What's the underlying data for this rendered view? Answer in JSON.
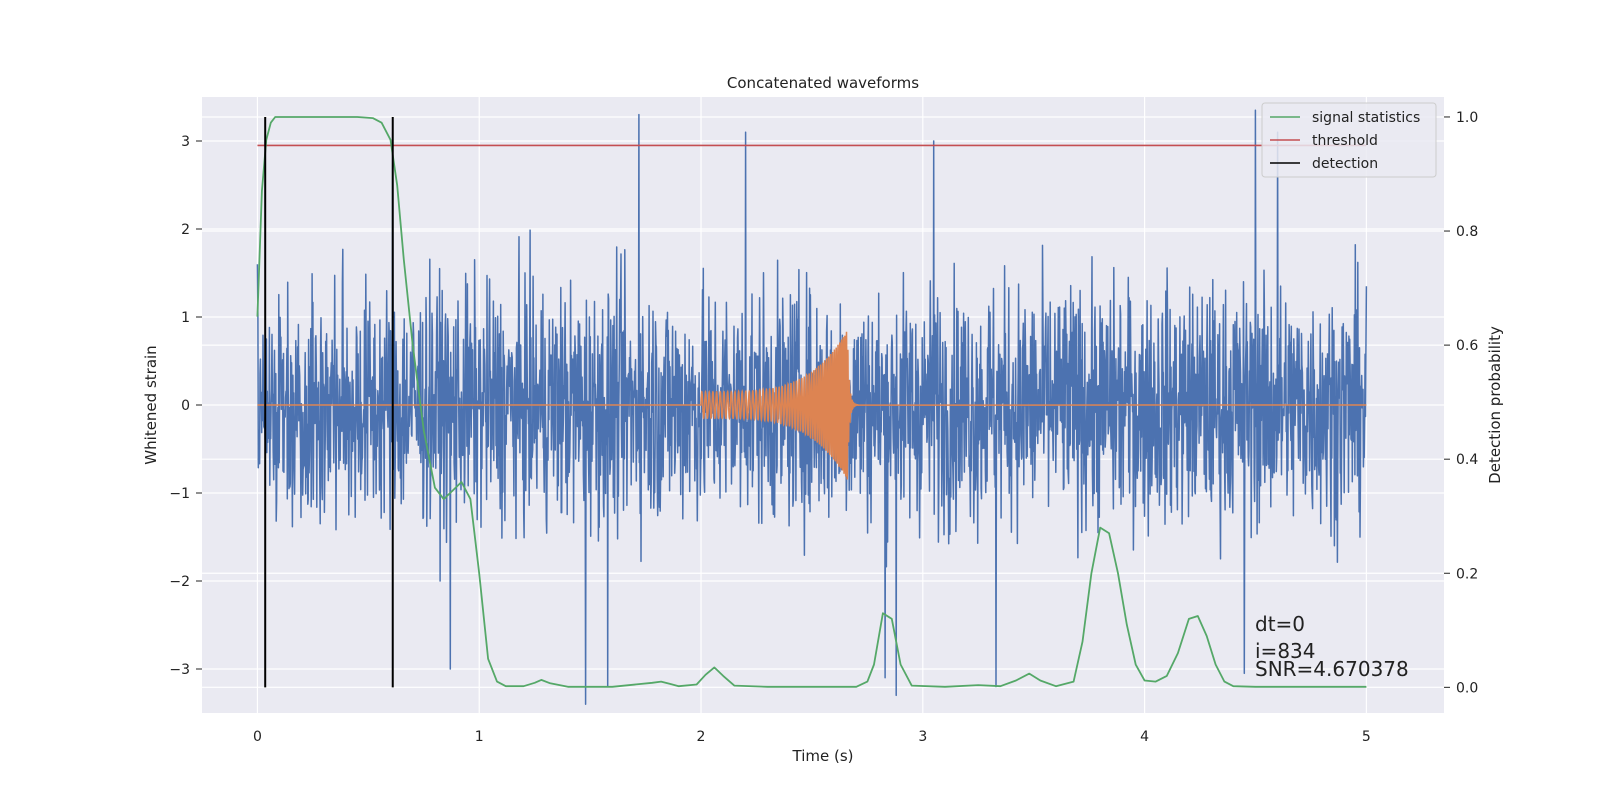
{
  "chart_data": {
    "type": "line",
    "title": "Concatenated waveforms",
    "xlabel": "Time (s)",
    "ylabel": "Whitened strain",
    "ylabel_right": "Detection probability",
    "xlim": [
      -0.25,
      5.35
    ],
    "ylim": [
      -3.5,
      3.5
    ],
    "ylim_right": [
      -0.045,
      1.035
    ],
    "xticks": [
      0,
      1,
      2,
      3,
      4,
      5
    ],
    "xtick_labels": [
      "0",
      "1",
      "2",
      "3",
      "4",
      "5"
    ],
    "yticks": [
      3,
      2,
      1,
      0,
      -1,
      -2,
      -3
    ],
    "ytick_labels": [
      "3",
      "2",
      "1",
      "0",
      "−1",
      "−2",
      "−3"
    ],
    "yticks_right": [
      1.0,
      0.8,
      0.6,
      0.4,
      0.2,
      0.0
    ],
    "ytick_right_labels": [
      "1.0",
      "0.8",
      "0.6",
      "0.4",
      "0.2",
      "0.0"
    ],
    "grid": true,
    "legend_position": "top-right",
    "legend": [
      {
        "label": "signal statistics",
        "color": "#55a868"
      },
      {
        "label": "threshold",
        "color": "#c44e52"
      },
      {
        "label": "detection",
        "color": "#000000"
      }
    ],
    "series": [
      {
        "name": "whitened strain",
        "axis": "left",
        "color": "#4c72b0",
        "x_range": [
          0,
          5
        ],
        "typical_range": [
          -1.5,
          2.2
        ],
        "peaks": [
          [
            0.0,
            1.6
          ],
          [
            0.61,
            3.1
          ],
          [
            1.72,
            3.3
          ],
          [
            2.2,
            3.1
          ],
          [
            3.05,
            3.0
          ],
          [
            4.5,
            3.35
          ],
          [
            4.6,
            3.1
          ],
          [
            1.48,
            -3.4
          ],
          [
            1.58,
            -3.2
          ],
          [
            2.83,
            -3.1
          ],
          [
            2.88,
            -3.3
          ],
          [
            3.33,
            -3.2
          ],
          [
            4.45,
            -3.05
          ],
          [
            0.87,
            -3.0
          ]
        ]
      },
      {
        "name": "injected waveform",
        "axis": "left",
        "color": "#dd8452",
        "chirp_start": 2.0,
        "merger_time": 2.66,
        "amplitude_start": 0.15,
        "amplitude_peak": 0.85,
        "amplitude_trough": -0.65
      },
      {
        "name": "signal statistics",
        "axis": "right",
        "color": "#55a868",
        "x": [
          0.0,
          0.02,
          0.04,
          0.06,
          0.08,
          0.1,
          0.15,
          0.3,
          0.45,
          0.52,
          0.56,
          0.6,
          0.63,
          0.66,
          0.7,
          0.75,
          0.8,
          0.84,
          0.88,
          0.92,
          0.96,
          1.0,
          1.04,
          1.08,
          1.12,
          1.2,
          1.25,
          1.28,
          1.32,
          1.4,
          1.6,
          1.78,
          1.82,
          1.86,
          1.9,
          1.98,
          2.02,
          2.06,
          2.1,
          2.15,
          2.3,
          2.5,
          2.7,
          2.75,
          2.78,
          2.82,
          2.86,
          2.9,
          2.95,
          3.1,
          3.25,
          3.35,
          3.42,
          3.48,
          3.53,
          3.6,
          3.68,
          3.72,
          3.76,
          3.8,
          3.84,
          3.88,
          3.92,
          3.96,
          4.0,
          4.05,
          4.1,
          4.15,
          4.2,
          4.24,
          4.28,
          4.32,
          4.36,
          4.4,
          4.5,
          4.8,
          5.0
        ],
        "y": [
          0.65,
          0.87,
          0.96,
          0.99,
          1.0,
          1.0,
          1.0,
          1.0,
          1.0,
          0.998,
          0.99,
          0.96,
          0.88,
          0.75,
          0.6,
          0.45,
          0.35,
          0.33,
          0.345,
          0.36,
          0.33,
          0.2,
          0.05,
          0.01,
          0.002,
          0.002,
          0.008,
          0.013,
          0.007,
          0.001,
          0.001,
          0.008,
          0.01,
          0.006,
          0.002,
          0.005,
          0.022,
          0.035,
          0.02,
          0.003,
          0.001,
          0.001,
          0.001,
          0.01,
          0.04,
          0.13,
          0.12,
          0.04,
          0.003,
          0.001,
          0.004,
          0.002,
          0.012,
          0.024,
          0.012,
          0.002,
          0.01,
          0.08,
          0.2,
          0.28,
          0.27,
          0.2,
          0.11,
          0.04,
          0.012,
          0.01,
          0.02,
          0.06,
          0.12,
          0.125,
          0.09,
          0.04,
          0.01,
          0.002,
          0.001,
          0.001,
          0.001
        ]
      },
      {
        "name": "threshold",
        "axis": "right",
        "color": "#c44e52",
        "x": [
          0,
          5
        ],
        "y": [
          0.95,
          0.95
        ]
      },
      {
        "name": "detection",
        "axis": "right",
        "color": "#000000",
        "vlines": [
          0.035,
          0.61
        ],
        "y_range": [
          0.0,
          1.0
        ]
      }
    ],
    "annotations": [
      "dt=0",
      "i=834",
      "SNR=4.670378"
    ]
  }
}
